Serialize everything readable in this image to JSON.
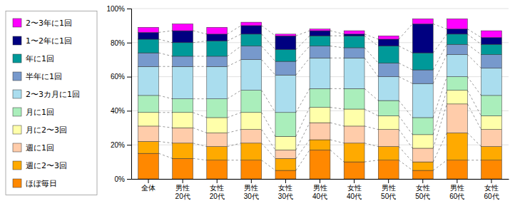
{
  "chart_data": {
    "type": "bar",
    "stacked": true,
    "categories": [
      "全体",
      "男性\n20代",
      "女性\n20代",
      "男性\n30代",
      "女性\n30代",
      "男性\n40代",
      "女性\n40代",
      "男性\n50代",
      "女性\n50代",
      "男性\n60代",
      "女性\n60代"
    ],
    "series": [
      {
        "name": "ほぼ毎日",
        "color": "#FF8800",
        "values": [
          15,
          12,
          11,
          11,
          5,
          17,
          10,
          11,
          5,
          11,
          11
        ]
      },
      {
        "name": "週に2〜3回",
        "color": "#FFAA00",
        "values": [
          7,
          9,
          8,
          10,
          7,
          6,
          11,
          8,
          5,
          16,
          8
        ]
      },
      {
        "name": "週に1回",
        "color": "#FFCCAA",
        "values": [
          9,
          9,
          8,
          8,
          5,
          10,
          10,
          10,
          8,
          17,
          10
        ]
      },
      {
        "name": "月に2〜3回",
        "color": "#FFFFAA",
        "values": [
          8,
          9,
          9,
          10,
          8,
          9,
          10,
          8,
          8,
          8,
          8
        ]
      },
      {
        "name": "月に1回",
        "color": "#AAEEBB",
        "values": [
          10,
          8,
          11,
          13,
          14,
          11,
          12,
          9,
          10,
          8,
          12
        ]
      },
      {
        "name": "2〜3カ月に1回",
        "color": "#AADDEE",
        "values": [
          17,
          19,
          19,
          18,
          22,
          18,
          18,
          14,
          20,
          13,
          16
        ]
      },
      {
        "name": "半年に1回",
        "color": "#7799CC",
        "values": [
          8,
          6,
          6,
          8,
          8,
          7,
          6,
          8,
          8,
          6,
          8
        ]
      },
      {
        "name": "年に1回",
        "color": "#009999",
        "values": [
          8,
          8,
          9,
          7,
          7,
          6,
          7,
          10,
          10,
          6,
          6
        ]
      },
      {
        "name": "1〜2年に1回",
        "color": "#000080",
        "values": [
          4,
          7,
          4,
          5,
          8,
          3,
          1,
          4,
          17,
          3,
          4
        ]
      },
      {
        "name": "2〜3年に1回",
        "color": "#FF00FF",
        "values": [
          3,
          4,
          4,
          2,
          1,
          1,
          2,
          2,
          3,
          6,
          4
        ]
      }
    ],
    "ylim": [
      0,
      100
    ],
    "yticks": [
      {
        "value": 0,
        "label": "0%"
      },
      {
        "value": 20,
        "label": "20%"
      },
      {
        "value": 40,
        "label": "40%"
      },
      {
        "value": 60,
        "label": "60%"
      },
      {
        "value": 80,
        "label": "80%"
      },
      {
        "value": 100,
        "label": "100%"
      }
    ],
    "grid": true,
    "legend": "left"
  }
}
